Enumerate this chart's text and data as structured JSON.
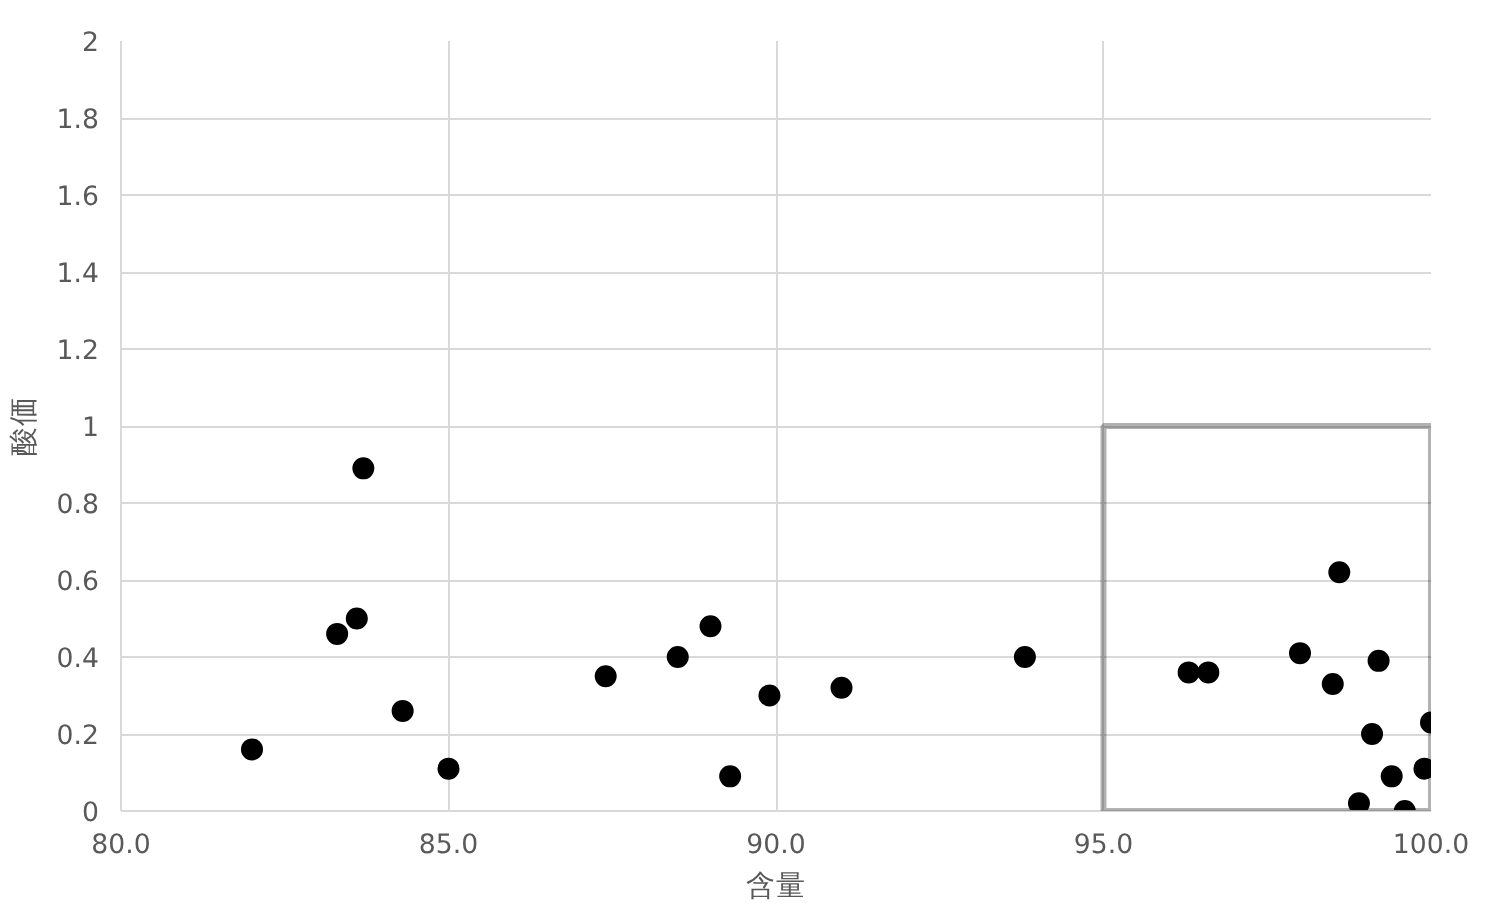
{
  "chart_data": {
    "type": "scatter",
    "xlabel": "含量",
    "ylabel": "酸価",
    "xlim": [
      80,
      100
    ],
    "ylim": [
      0,
      2
    ],
    "xticks": [
      {
        "value": 80,
        "label": "80.0"
      },
      {
        "value": 85,
        "label": "85.0"
      },
      {
        "value": 90,
        "label": "90.0"
      },
      {
        "value": 95,
        "label": "95.0"
      },
      {
        "value": 100,
        "label": "100.0"
      }
    ],
    "yticks": [
      0,
      0.2,
      0.4,
      0.6,
      0.8,
      1,
      1.2,
      1.4,
      1.6,
      1.8,
      2
    ],
    "grid": true,
    "marker": "circle",
    "series": [
      {
        "color": "#000000",
        "x": [
          82.0,
          83.3,
          83.6,
          83.7,
          84.3,
          85.0,
          87.4,
          88.5,
          89.0,
          89.3,
          89.9,
          91.0,
          93.8,
          96.3,
          96.6,
          98.0,
          98.5,
          98.6,
          98.9,
          99.1,
          99.2,
          99.4,
          99.6,
          99.9,
          100.0
        ],
        "values": [
          0.16,
          0.46,
          0.5,
          0.89,
          0.26,
          0.11,
          0.35,
          0.4,
          0.48,
          0.09,
          0.3,
          0.32,
          0.4,
          0.36,
          0.36,
          0.41,
          0.33,
          0.62,
          0.02,
          0.2,
          0.39,
          0.09,
          0.0,
          0.11,
          0.23
        ]
      }
    ]
  }
}
